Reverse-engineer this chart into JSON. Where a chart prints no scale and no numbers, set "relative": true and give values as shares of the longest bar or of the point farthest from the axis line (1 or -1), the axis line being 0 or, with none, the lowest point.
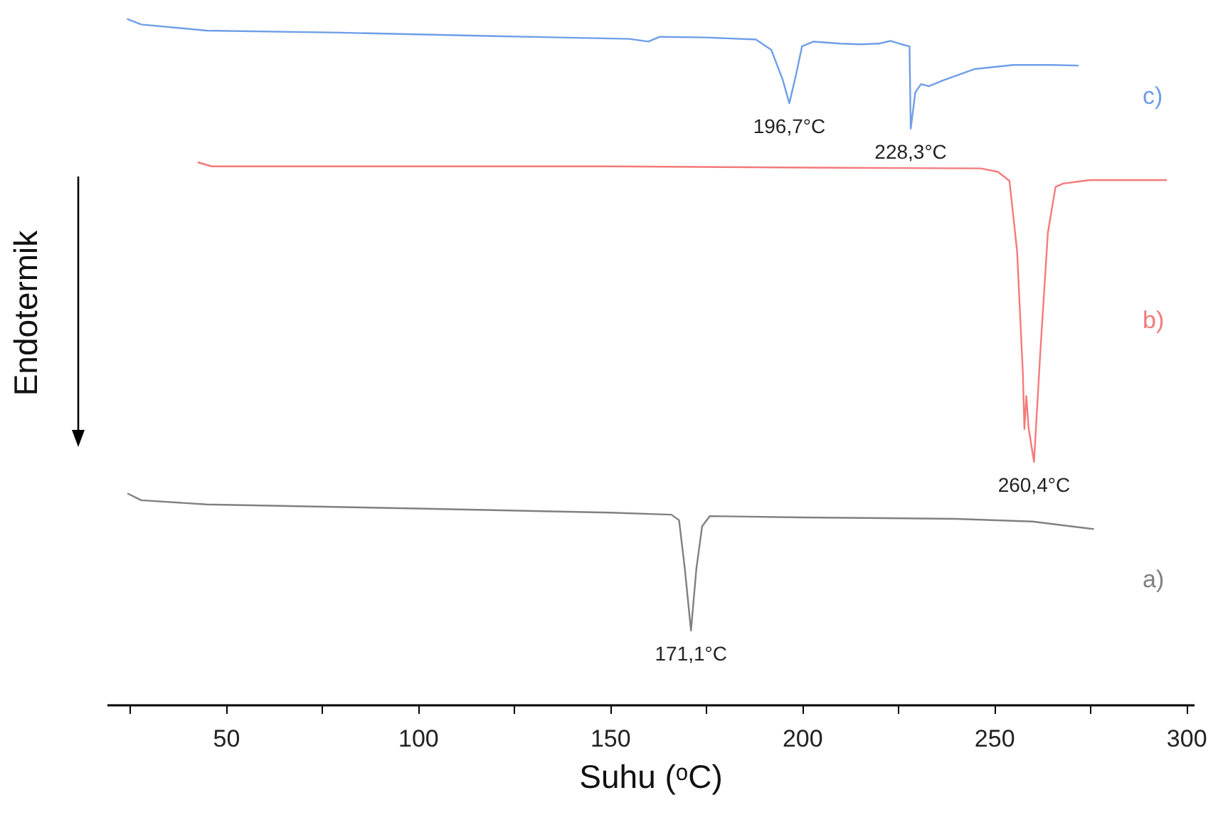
{
  "chart_data": {
    "type": "line",
    "relative": true,
    "xlabel": "Suhu (ᵒC)",
    "ylabel": "Endotermik",
    "xlim": [
      19,
      302
    ],
    "xticks": [
      {
        "value": 25,
        "label": null
      },
      50,
      {
        "value": 75,
        "label": null
      },
      100,
      {
        "value": 125,
        "label": null
      },
      150,
      {
        "value": 175,
        "label": null
      },
      200,
      {
        "value": 225,
        "label": null
      },
      250,
      {
        "value": 275,
        "label": null
      },
      300
    ],
    "grid": false,
    "marker": "none",
    "line_style": "solid",
    "annotations": [
      {
        "text": "196,7°C",
        "x": 196.7,
        "y": 0.877
      },
      {
        "text": "228,3°C",
        "x": 228.3,
        "y": 0.84
      },
      {
        "text": "260,4°C",
        "x": 260.4,
        "y": 0.354
      },
      {
        "text": "171,1°C",
        "x": 171.1,
        "y": 0.108
      }
    ],
    "series": [
      {
        "name": "c)",
        "color": "#6f9ee8",
        "x": [
          24.3,
          28,
          45,
          80,
          120,
          155,
          160,
          163,
          175,
          188,
          192,
          195,
          196.7,
          198.5,
          200,
          203,
          210,
          215,
          220,
          223,
          226,
          228,
          228.3,
          229.5,
          231,
          233,
          237,
          245,
          255,
          265,
          272
        ],
        "values": [
          1.0,
          0.992,
          0.983,
          0.98,
          0.975,
          0.971,
          0.967,
          0.974,
          0.973,
          0.97,
          0.955,
          0.911,
          0.877,
          0.92,
          0.96,
          0.967,
          0.964,
          0.963,
          0.964,
          0.968,
          0.963,
          0.96,
          0.84,
          0.893,
          0.905,
          0.902,
          0.911,
          0.927,
          0.933,
          0.933,
          0.932
        ]
      },
      {
        "name": "b)",
        "color": "#f47a7a",
        "x": [
          42.7,
          46.3,
          80,
          150,
          210,
          246.6,
          251,
          254,
          256,
          257.5,
          257.9,
          258.4,
          259,
          260.4,
          262,
          264,
          266,
          268,
          275,
          295
        ],
        "values": [
          0.791,
          0.785,
          0.785,
          0.785,
          0.783,
          0.782,
          0.777,
          0.764,
          0.661,
          0.483,
          0.402,
          0.45,
          0.403,
          0.354,
          0.51,
          0.688,
          0.755,
          0.76,
          0.765,
          0.765
        ]
      },
      {
        "name": "a)",
        "color": "#808080",
        "x": [
          24.4,
          28,
          45,
          100,
          150,
          166,
          168,
          169.5,
          171.1,
          172.5,
          174,
          176,
          200,
          240,
          260,
          276
        ],
        "values": [
          0.308,
          0.298,
          0.292,
          0.286,
          0.28,
          0.277,
          0.269,
          0.198,
          0.108,
          0.198,
          0.26,
          0.275,
          0.273,
          0.271,
          0.267,
          0.256
        ]
      }
    ]
  }
}
